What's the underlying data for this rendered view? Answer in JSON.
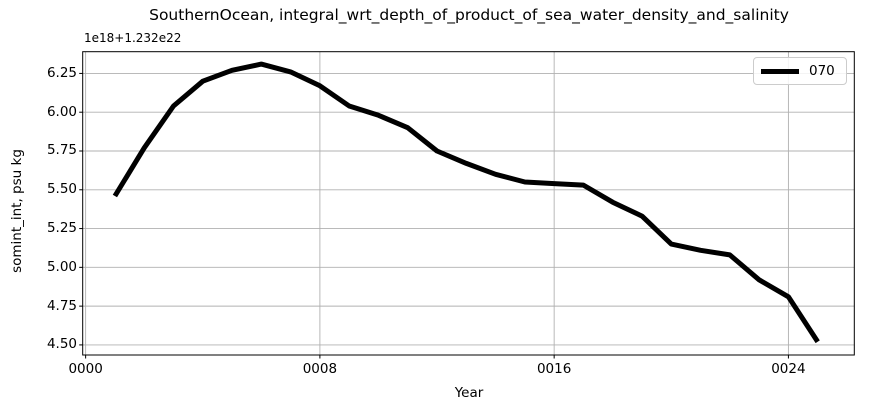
{
  "chart_data": {
    "type": "line",
    "title": "SouthernOcean, integral_wrt_depth_of_product_of_sea_water_density_and_salinity",
    "offset_text": "1e18+1.232e22",
    "xlabel": "Year",
    "ylabel": "somint_int, psu kg",
    "grid": true,
    "legend_position": "upper right",
    "xlim": [
      -0.1,
      26.25
    ],
    "ylim": [
      4.435,
      6.39
    ],
    "xticks": {
      "values": [
        0,
        8,
        16,
        24
      ],
      "labels": [
        "0000",
        "0008",
        "0016",
        "0024"
      ]
    },
    "yticks": {
      "values": [
        4.5,
        4.75,
        5.0,
        5.25,
        5.5,
        5.75,
        6.0,
        6.25
      ],
      "labels": [
        "4.50",
        "4.75",
        "5.00",
        "5.25",
        "5.50",
        "5.75",
        "6.00",
        "6.25"
      ]
    },
    "x": [
      1,
      2,
      3,
      4,
      5,
      6,
      7,
      8,
      9,
      10,
      11,
      12,
      13,
      14,
      15,
      16,
      17,
      18,
      19,
      20,
      21,
      22,
      23,
      24,
      25
    ],
    "series": [
      {
        "name": "070",
        "color": "#000000",
        "values": [
          5.46,
          5.77,
          6.04,
          6.2,
          6.27,
          6.31,
          6.26,
          6.17,
          6.04,
          5.98,
          5.9,
          5.75,
          5.67,
          5.6,
          5.55,
          5.54,
          5.53,
          5.42,
          5.33,
          5.15,
          5.11,
          5.08,
          4.92,
          4.81,
          4.52
        ]
      }
    ]
  }
}
